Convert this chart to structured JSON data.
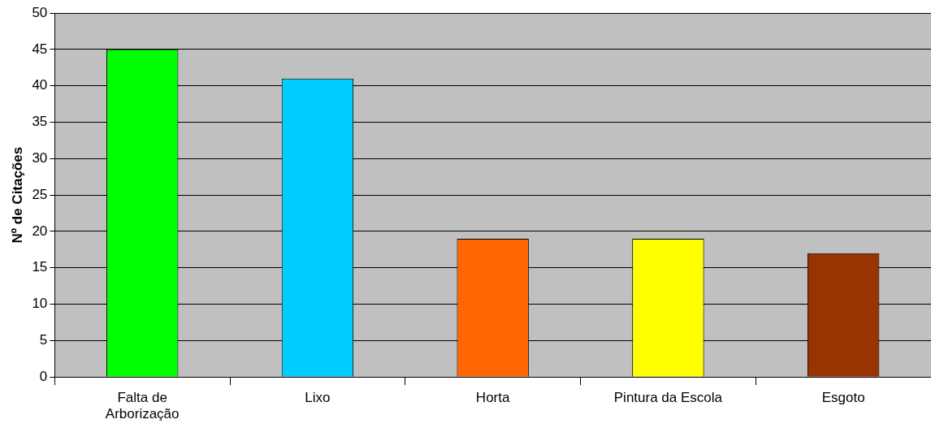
{
  "chart_data": {
    "type": "bar",
    "ylabel": "Nº de Citações",
    "categories": [
      "Falta de\nArborização",
      "Lixo",
      "Horta",
      "Pintura da Escola",
      "Esgoto"
    ],
    "values": [
      45,
      41,
      19,
      19,
      17
    ],
    "colors": [
      "#00ff00",
      "#00ccff",
      "#ff6600",
      "#ffff00",
      "#993300"
    ],
    "ylim": [
      0,
      50
    ],
    "yticks": [
      0,
      5,
      10,
      15,
      20,
      25,
      30,
      35,
      40,
      45,
      50
    ],
    "grid": "y",
    "legend": false
  }
}
